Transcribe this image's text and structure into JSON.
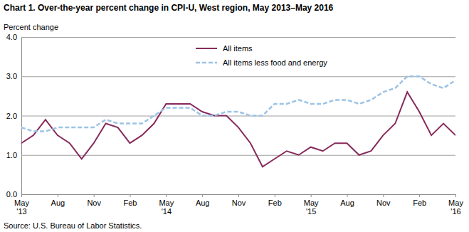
{
  "chart_data": {
    "type": "line",
    "title": "Chart 1. Over-the-year percent change in CPI-U, West region, May 2013–May 2016",
    "y_label": "Percent change",
    "source": "Source: U.S. Bureau of Labor Statistics.",
    "categories": [
      "May\n'13",
      null,
      null,
      "Aug",
      null,
      null,
      "Nov",
      null,
      null,
      "Feb",
      null,
      null,
      "May\n'14",
      null,
      null,
      "Aug",
      null,
      null,
      "Nov",
      null,
      null,
      "Feb",
      null,
      null,
      "May\n'15",
      null,
      null,
      "Aug",
      null,
      null,
      "Nov",
      null,
      null,
      "Feb",
      null,
      null,
      "May\n'16"
    ],
    "series": [
      {
        "name": "All items",
        "color": "#862a5c",
        "line_style": "solid",
        "values": [
          1.3,
          1.5,
          1.9,
          1.5,
          1.3,
          0.9,
          1.3,
          1.8,
          1.7,
          1.3,
          1.5,
          1.8,
          2.3,
          2.3,
          2.3,
          2.1,
          2.0,
          2.0,
          1.7,
          1.3,
          0.7,
          0.9,
          1.1,
          1.0,
          1.2,
          1.1,
          1.3,
          1.3,
          1.0,
          1.1,
          1.5,
          1.8,
          2.6,
          2.1,
          1.5,
          1.8,
          1.5
        ]
      },
      {
        "name": "All items less food and energy",
        "color": "#9cc3e6",
        "line_style": "dashed",
        "values": [
          1.7,
          1.6,
          1.6,
          1.7,
          1.7,
          1.7,
          1.7,
          1.9,
          1.8,
          1.8,
          1.8,
          2.0,
          2.2,
          2.2,
          2.2,
          2.0,
          2.0,
          2.1,
          2.1,
          2.0,
          2.0,
          2.3,
          2.3,
          2.4,
          2.3,
          2.3,
          2.4,
          2.4,
          2.3,
          2.4,
          2.6,
          2.7,
          3.0,
          3.0,
          2.8,
          2.7,
          2.9
        ]
      }
    ],
    "ylim": [
      0,
      4
    ],
    "yticks": [
      {
        "value": 0,
        "label": "0.0"
      },
      {
        "value": 1,
        "label": "1.0"
      },
      {
        "value": 2,
        "label": "2.0"
      },
      {
        "value": 3,
        "label": "3.0"
      },
      {
        "value": 4,
        "label": "4.0"
      }
    ],
    "grid": true,
    "legend": "top"
  }
}
